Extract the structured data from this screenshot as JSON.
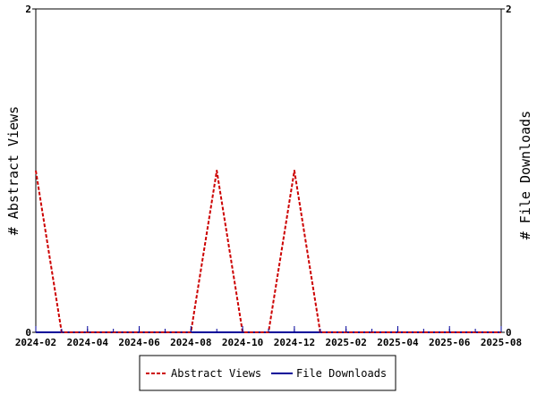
{
  "chart_data": {
    "type": "line",
    "x_tick_labels": [
      "2024-02",
      "2024-04",
      "2024-06",
      "2024-08",
      "2024-10",
      "2024-12",
      "2025-02",
      "2025-04",
      "2025-06",
      "2025-08"
    ],
    "x": [
      "2024-02",
      "2024-03",
      "2024-04",
      "2024-05",
      "2024-06",
      "2024-07",
      "2024-08",
      "2024-09",
      "2024-10",
      "2024-11",
      "2024-12",
      "2025-01",
      "2025-02",
      "2025-03",
      "2025-04",
      "2025-05",
      "2025-06",
      "2025-07",
      "2025-08"
    ],
    "xlim": [
      "2024-02",
      "2025-08"
    ],
    "ylabel_left": "# Abstract Views",
    "ylabel_right": "# File Downloads",
    "ylim_left": [
      0,
      2
    ],
    "ylim_right": [
      0,
      2
    ],
    "y_tick_labels_left": [
      "0",
      "2"
    ],
    "y_tick_labels_right": [
      "0",
      "2"
    ],
    "grid": false,
    "legend_position": "bottom-center",
    "series": [
      {
        "name": "Abstract Views",
        "axis": "left",
        "color": "#cc0000",
        "line_style": "dashed",
        "values": [
          1,
          0,
          0,
          0,
          0,
          0,
          0,
          1,
          0,
          0,
          1,
          0,
          0,
          0,
          0,
          0,
          0,
          0,
          0
        ]
      },
      {
        "name": "File Downloads",
        "axis": "right",
        "color": "#000099",
        "line_style": "solid",
        "values": [
          0,
          0,
          0,
          0,
          0,
          0,
          0,
          0,
          0,
          0,
          0,
          0,
          0,
          0,
          0,
          0,
          0,
          0,
          0
        ]
      }
    ]
  }
}
